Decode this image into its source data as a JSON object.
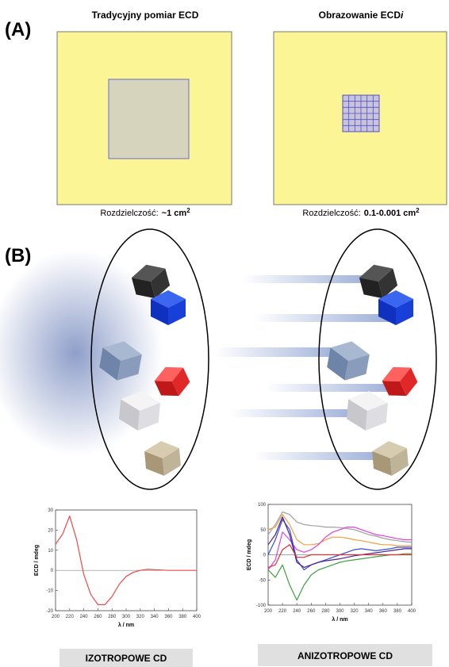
{
  "panel_a": {
    "label": "(A)",
    "left": {
      "title": "Tradycyjny pomiar ECD",
      "resolution_label": "Rozdzielczość:",
      "resolution_value": "~1 cm",
      "resolution_exponent": "2"
    },
    "right": {
      "title": "Obrazowanie ECD",
      "title_italic": "i",
      "resolution_label": "Rozdzielczość:",
      "resolution_value": "0.1-0.001 cm",
      "resolution_exponent": "2"
    }
  },
  "panel_b": {
    "label": "(B)",
    "left_caption": "IZOTROPOWE CD",
    "right_caption": "ANIZOTROPOWE CD"
  },
  "chart_data": [
    {
      "type": "line",
      "x_label": "λ / nm",
      "y_label": "ECD / mdeg",
      "x": [
        200,
        210,
        220,
        230,
        240,
        250,
        260,
        270,
        280,
        290,
        300,
        310,
        320,
        330,
        340,
        350,
        360,
        370,
        380,
        390,
        400
      ],
      "series": [
        {
          "color": "#f04848",
          "values": [
            13,
            18,
            27,
            15,
            -2,
            -12,
            -17,
            -17,
            -13,
            -7,
            -3,
            -1,
            0,
            0.5,
            0.3,
            0.2,
            0,
            0,
            0,
            0,
            0
          ]
        }
      ],
      "xlim": [
        200,
        400
      ],
      "xticks": [
        200,
        220,
        240,
        260,
        280,
        300,
        320,
        340,
        360,
        380,
        400
      ],
      "ylim": [
        -20,
        30
      ],
      "yticks": [
        -20,
        -10,
        0,
        10,
        20,
        30
      ],
      "zero_line": true
    },
    {
      "type": "line",
      "x_label": "λ / nm",
      "y_label": "ECD / mdeg",
      "x": [
        200,
        210,
        220,
        230,
        240,
        250,
        260,
        270,
        280,
        290,
        300,
        310,
        320,
        330,
        340,
        350,
        360,
        370,
        380,
        390,
        400
      ],
      "series": [
        {
          "color": "#a0a0a0",
          "values": [
            40,
            60,
            85,
            80,
            65,
            60,
            58,
            57,
            55,
            55,
            54,
            52,
            50,
            45,
            40,
            37,
            33,
            30,
            28,
            26,
            25
          ]
        },
        {
          "color": "#f0a040",
          "values": [
            50,
            55,
            80,
            60,
            30,
            20,
            20,
            22,
            30,
            35,
            35,
            33,
            30,
            28,
            25,
            22,
            20,
            20,
            18,
            18,
            18
          ]
        },
        {
          "color": "#e040e0",
          "values": [
            -30,
            -10,
            45,
            30,
            10,
            5,
            10,
            20,
            35,
            45,
            50,
            55,
            55,
            50,
            45,
            40,
            38,
            35,
            32,
            30,
            30
          ]
        },
        {
          "color": "#3050e0",
          "values": [
            0,
            30,
            70,
            50,
            -10,
            -30,
            -20,
            -15,
            -10,
            -5,
            0,
            5,
            10,
            12,
            10,
            8,
            10,
            12,
            15,
            15,
            15
          ]
        },
        {
          "color": "#502090",
          "values": [
            20,
            40,
            75,
            40,
            -15,
            -25,
            -20,
            -15,
            -12,
            -10,
            -8,
            -5,
            -2,
            0,
            2,
            4,
            6,
            8,
            10,
            12,
            12
          ]
        },
        {
          "color": "#40a040",
          "values": [
            -30,
            -45,
            -20,
            -60,
            -90,
            -60,
            -40,
            -30,
            -25,
            -20,
            -15,
            -12,
            -10,
            -8,
            -6,
            -4,
            -2,
            0,
            0,
            2,
            2
          ]
        },
        {
          "color": "#e03030",
          "values": [
            -25,
            -20,
            10,
            20,
            -5,
            -5,
            0,
            0,
            0,
            0,
            0,
            0,
            0,
            0,
            0,
            0,
            0,
            0,
            0,
            0,
            0
          ]
        }
      ],
      "xlim": [
        200,
        400
      ],
      "xticks": [
        200,
        220,
        240,
        260,
        280,
        300,
        320,
        340,
        360,
        380,
        400
      ],
      "ylim": [
        -100,
        100
      ],
      "yticks": [
        -100,
        -50,
        0,
        50,
        100
      ],
      "zero_line": true
    }
  ]
}
